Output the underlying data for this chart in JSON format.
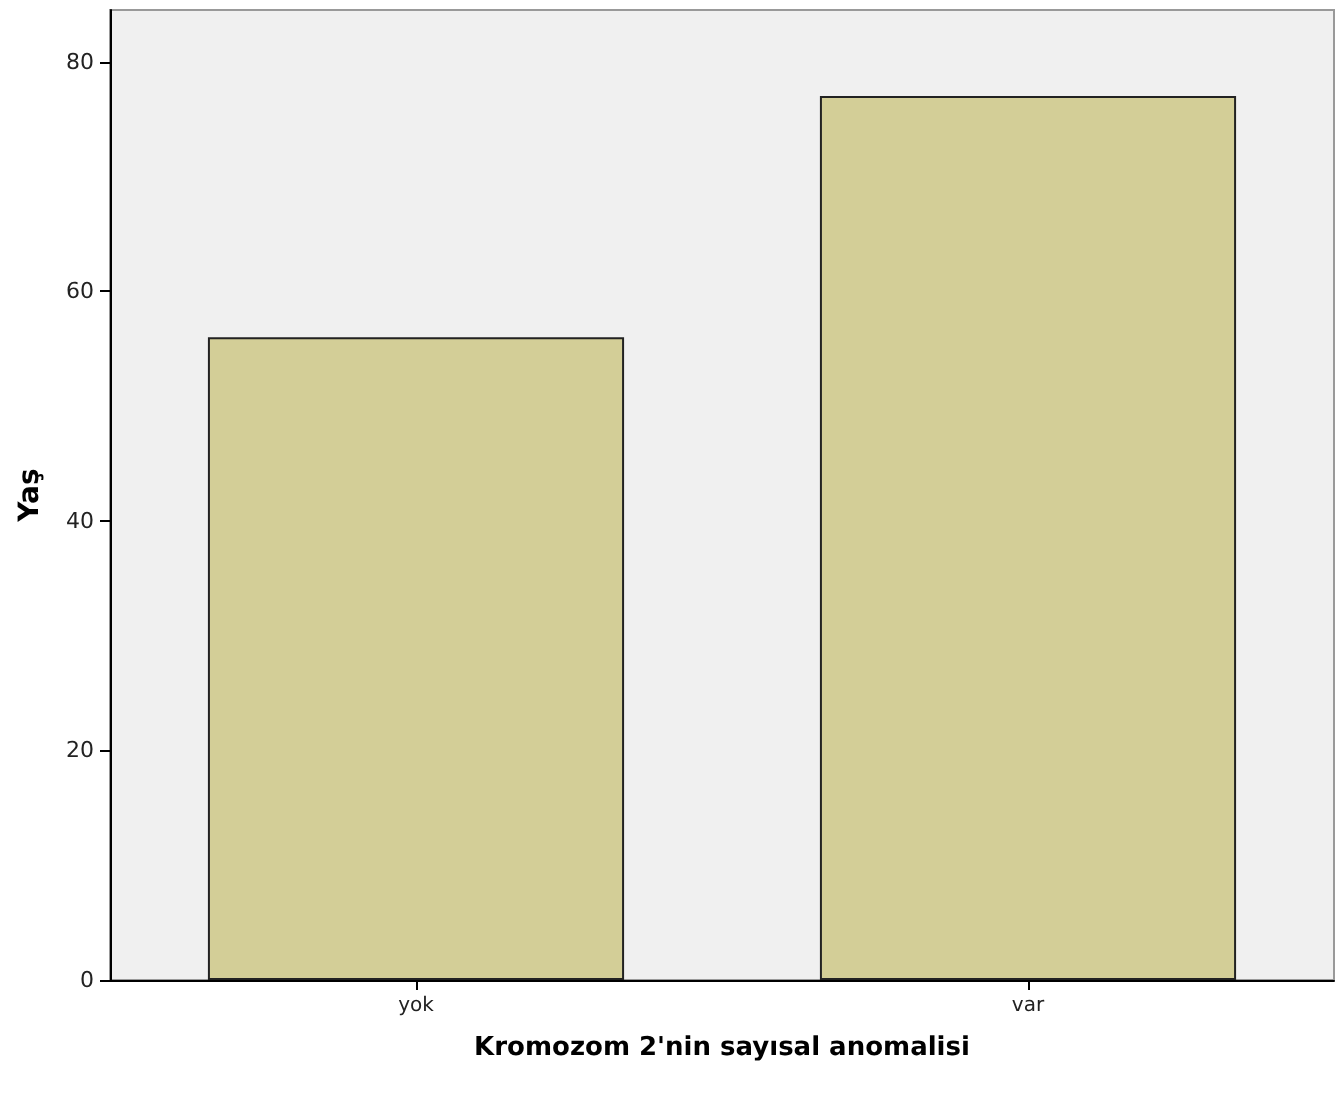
{
  "chart_data": {
    "type": "bar",
    "xlabel": "Kromozom 2'nin sayısal anomalisi",
    "ylabel": "Yaş",
    "categories": [
      "yok",
      "var"
    ],
    "values": [
      56,
      77
    ],
    "color": "#d3ce97",
    "ylim": [
      0,
      84.5
    ],
    "yticks": [
      0,
      20,
      40,
      60,
      80
    ],
    "grid": false
  }
}
